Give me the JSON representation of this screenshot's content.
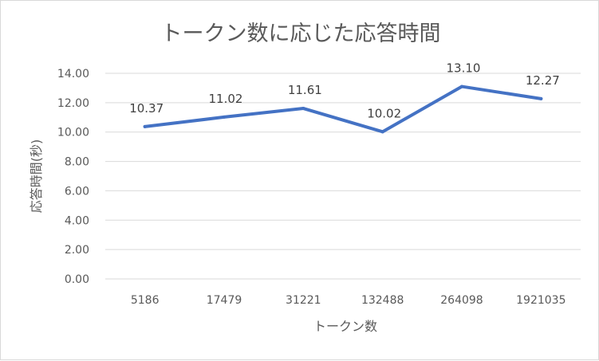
{
  "chart_data": {
    "type": "line",
    "title": "トークン数に応じた応答時間",
    "xlabel": "トークン数",
    "ylabel": "応答時間(秒)",
    "categories": [
      "5186",
      "17479",
      "31221",
      "132488",
      "264098",
      "1921035"
    ],
    "series": [
      {
        "values": [
          10.37,
          11.02,
          11.61,
          10.02,
          13.1,
          12.27
        ]
      }
    ],
    "data_labels": [
      "10.37",
      "11.02",
      "11.61",
      "10.02",
      "13.10",
      "12.27"
    ],
    "y_ticks": [
      "0.00",
      "2.00",
      "4.00",
      "6.00",
      "8.00",
      "10.00",
      "12.00",
      "14.00"
    ],
    "ylim": [
      0,
      14
    ],
    "grid": true,
    "legend": "none",
    "line_color": "#4472C4",
    "grid_color": "#d9d9d9"
  }
}
